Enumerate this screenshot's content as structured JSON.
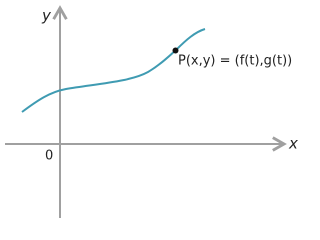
{
  "axes": {
    "x_label": "x",
    "y_label": "y",
    "origin_label": "0"
  },
  "point": {
    "label": "P(x,y) = (f(t),g(t))"
  }
}
